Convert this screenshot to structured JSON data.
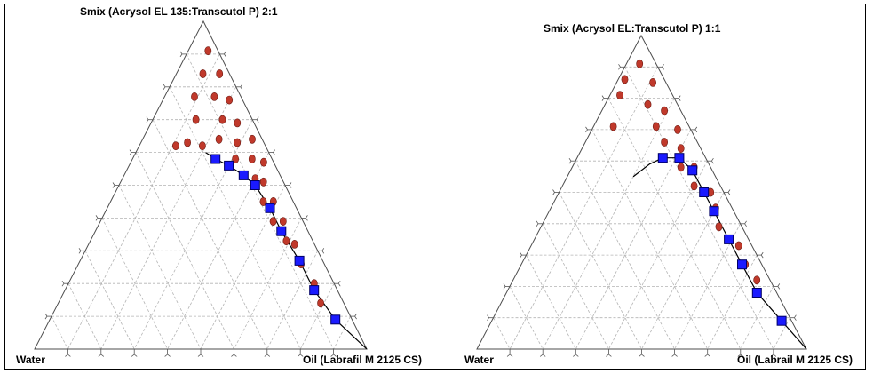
{
  "chart_data": [
    {
      "type": "ternary",
      "title": "Smix (Acrysol EL 135:Transcutol P) 2:1",
      "apex_top_label": "Smix (Acrysol EL 135:Transcutol P) 2:1",
      "corner_left_label": "Water",
      "corner_right_label": "Oil (Labrafil M 2125 CS)",
      "grid": true,
      "grid_step": 0.1,
      "axis_order": [
        "smix",
        "oil",
        "water"
      ],
      "boundary_points": [
        {
          "smix": 0.58,
          "oil": 0.25,
          "water": 0.17
        },
        {
          "smix": 0.56,
          "oil": 0.3,
          "water": 0.14
        },
        {
          "smix": 0.53,
          "oil": 0.36,
          "water": 0.11
        },
        {
          "smix": 0.5,
          "oil": 0.41,
          "water": 0.09
        },
        {
          "smix": 0.43,
          "oil": 0.49,
          "water": 0.08
        },
        {
          "smix": 0.36,
          "oil": 0.56,
          "water": 0.08
        },
        {
          "smix": 0.27,
          "oil": 0.66,
          "water": 0.07
        },
        {
          "smix": 0.18,
          "oil": 0.75,
          "water": 0.07
        },
        {
          "smix": 0.09,
          "oil": 0.86,
          "water": 0.05
        }
      ],
      "boundary_curve": [
        {
          "smix": 0.6,
          "oil": 0.21,
          "water": 0.19
        },
        {
          "smix": 0.58,
          "oil": 0.25,
          "water": 0.17
        },
        {
          "smix": 0.56,
          "oil": 0.3,
          "water": 0.14
        },
        {
          "smix": 0.53,
          "oil": 0.36,
          "water": 0.11
        },
        {
          "smix": 0.5,
          "oil": 0.41,
          "water": 0.09
        },
        {
          "smix": 0.43,
          "oil": 0.49,
          "water": 0.08
        },
        {
          "smix": 0.36,
          "oil": 0.56,
          "water": 0.08
        },
        {
          "smix": 0.27,
          "oil": 0.66,
          "water": 0.07
        },
        {
          "smix": 0.18,
          "oil": 0.75,
          "water": 0.07
        },
        {
          "smix": 0.09,
          "oil": 0.86,
          "water": 0.05
        },
        {
          "smix": 0.0,
          "oil": 1.0,
          "water": 0.0
        }
      ],
      "region_points": [
        {
          "smix": 0.91,
          "oil": 0.06,
          "water": 0.03
        },
        {
          "smix": 0.84,
          "oil": 0.08,
          "water": 0.08
        },
        {
          "smix": 0.84,
          "oil": 0.13,
          "water": 0.03
        },
        {
          "smix": 0.77,
          "oil": 0.09,
          "water": 0.14
        },
        {
          "smix": 0.77,
          "oil": 0.15,
          "water": 0.08
        },
        {
          "smix": 0.76,
          "oil": 0.2,
          "water": 0.04
        },
        {
          "smix": 0.7,
          "oil": 0.13,
          "water": 0.17
        },
        {
          "smix": 0.7,
          "oil": 0.21,
          "water": 0.09
        },
        {
          "smix": 0.69,
          "oil": 0.26,
          "water": 0.05
        },
        {
          "smix": 0.62,
          "oil": 0.11,
          "water": 0.27
        },
        {
          "smix": 0.63,
          "oil": 0.14,
          "water": 0.23
        },
        {
          "smix": 0.62,
          "oil": 0.19,
          "water": 0.19
        },
        {
          "smix": 0.64,
          "oil": 0.23,
          "water": 0.13
        },
        {
          "smix": 0.63,
          "oil": 0.29,
          "water": 0.08
        },
        {
          "smix": 0.64,
          "oil": 0.33,
          "water": 0.03
        },
        {
          "smix": 0.58,
          "oil": 0.31,
          "water": 0.11
        },
        {
          "smix": 0.58,
          "oil": 0.36,
          "water": 0.06
        },
        {
          "smix": 0.57,
          "oil": 0.4,
          "water": 0.03
        },
        {
          "smix": 0.52,
          "oil": 0.4,
          "water": 0.08
        },
        {
          "smix": 0.51,
          "oil": 0.43,
          "water": 0.06
        },
        {
          "smix": 0.45,
          "oil": 0.46,
          "water": 0.09
        },
        {
          "smix": 0.45,
          "oil": 0.49,
          "water": 0.06
        },
        {
          "smix": 0.39,
          "oil": 0.52,
          "water": 0.09
        },
        {
          "smix": 0.39,
          "oil": 0.55,
          "water": 0.06
        },
        {
          "smix": 0.33,
          "oil": 0.59,
          "water": 0.08
        },
        {
          "smix": 0.32,
          "oil": 0.62,
          "water": 0.06
        },
        {
          "smix": 0.26,
          "oil": 0.67,
          "water": 0.07
        },
        {
          "smix": 0.2,
          "oil": 0.74,
          "water": 0.06
        },
        {
          "smix": 0.14,
          "oil": 0.79,
          "water": 0.07
        }
      ]
    },
    {
      "type": "ternary",
      "title": "Smix (Acrysol EL:Transcutol P) 1:1",
      "apex_top_label": "Smix (Acrysol EL:Transcutol P) 1:1",
      "corner_left_label": "Water",
      "corner_right_label": "Oil (Labrail M 2125 CS)",
      "grid": true,
      "grid_step": 0.1,
      "axis_order": [
        "smix",
        "oil",
        "water"
      ],
      "boundary_points": [
        {
          "smix": 0.61,
          "oil": 0.26,
          "water": 0.13
        },
        {
          "smix": 0.61,
          "oil": 0.31,
          "water": 0.08
        },
        {
          "smix": 0.57,
          "oil": 0.37,
          "water": 0.06
        },
        {
          "smix": 0.5,
          "oil": 0.44,
          "water": 0.06
        },
        {
          "smix": 0.44,
          "oil": 0.5,
          "water": 0.06
        },
        {
          "smix": 0.35,
          "oil": 0.59,
          "water": 0.06
        },
        {
          "smix": 0.27,
          "oil": 0.67,
          "water": 0.06
        },
        {
          "smix": 0.18,
          "oil": 0.76,
          "water": 0.06
        },
        {
          "smix": 0.09,
          "oil": 0.88,
          "water": 0.03
        }
      ],
      "boundary_curve": [
        {
          "smix": 0.55,
          "oil": 0.2,
          "water": 0.25
        },
        {
          "smix": 0.59,
          "oil": 0.23,
          "water": 0.18
        },
        {
          "smix": 0.61,
          "oil": 0.26,
          "water": 0.13
        },
        {
          "smix": 0.61,
          "oil": 0.31,
          "water": 0.08
        },
        {
          "smix": 0.57,
          "oil": 0.37,
          "water": 0.06
        },
        {
          "smix": 0.5,
          "oil": 0.44,
          "water": 0.06
        },
        {
          "smix": 0.44,
          "oil": 0.5,
          "water": 0.06
        },
        {
          "smix": 0.35,
          "oil": 0.59,
          "water": 0.06
        },
        {
          "smix": 0.27,
          "oil": 0.67,
          "water": 0.06
        },
        {
          "smix": 0.18,
          "oil": 0.76,
          "water": 0.06
        },
        {
          "smix": 0.09,
          "oil": 0.88,
          "water": 0.03
        },
        {
          "smix": 0.0,
          "oil": 1.0,
          "water": 0.0
        }
      ],
      "region_points": [
        {
          "smix": 0.91,
          "oil": 0.04,
          "water": 0.05
        },
        {
          "smix": 0.86,
          "oil": 0.02,
          "water": 0.12
        },
        {
          "smix": 0.85,
          "oil": 0.11,
          "water": 0.04
        },
        {
          "smix": 0.81,
          "oil": 0.03,
          "water": 0.16
        },
        {
          "smix": 0.78,
          "oil": 0.13,
          "water": 0.09
        },
        {
          "smix": 0.76,
          "oil": 0.19,
          "water": 0.05
        },
        {
          "smix": 0.71,
          "oil": 0.06,
          "water": 0.23
        },
        {
          "smix": 0.71,
          "oil": 0.19,
          "water": 0.1
        },
        {
          "smix": 0.7,
          "oil": 0.26,
          "water": 0.04
        },
        {
          "smix": 0.66,
          "oil": 0.24,
          "water": 0.1
        },
        {
          "smix": 0.64,
          "oil": 0.3,
          "water": 0.06
        },
        {
          "smix": 0.58,
          "oil": 0.33,
          "water": 0.09
        },
        {
          "smix": 0.58,
          "oil": 0.37,
          "water": 0.05
        },
        {
          "smix": 0.52,
          "oil": 0.4,
          "water": 0.08
        },
        {
          "smix": 0.5,
          "oil": 0.46,
          "water": 0.04
        },
        {
          "smix": 0.45,
          "oil": 0.5,
          "water": 0.05
        },
        {
          "smix": 0.39,
          "oil": 0.54,
          "water": 0.07
        },
        {
          "smix": 0.33,
          "oil": 0.63,
          "water": 0.04
        },
        {
          "smix": 0.27,
          "oil": 0.68,
          "water": 0.05
        },
        {
          "smix": 0.22,
          "oil": 0.74,
          "water": 0.04
        }
      ]
    }
  ],
  "colors": {
    "region_marker_fill": "#c0392b",
    "region_marker_stroke": "#6b1a12",
    "boundary_marker_fill": "#1a1aff",
    "boundary_marker_stroke": "#000066",
    "grid": "#b4b4b4",
    "frame": "#000000"
  }
}
